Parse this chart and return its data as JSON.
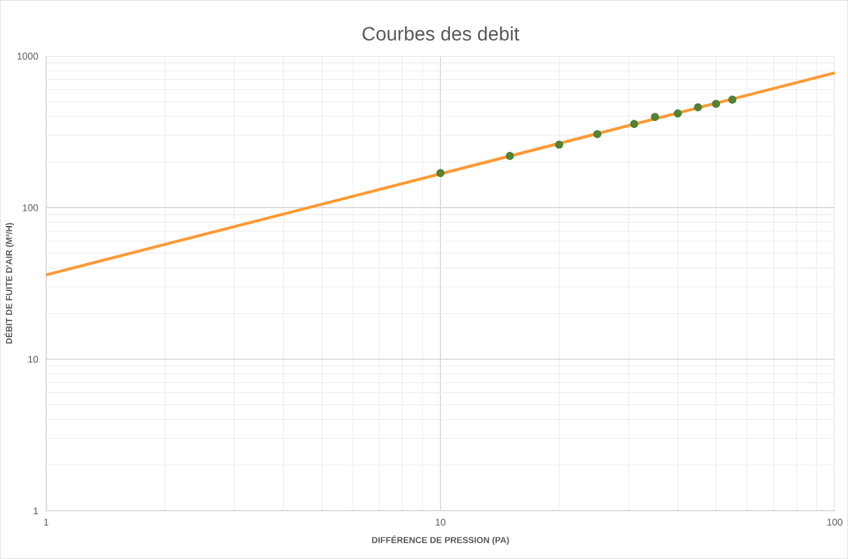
{
  "chart_data": {
    "type": "scatter",
    "title": "Courbes des debit",
    "xlabel": "DIFFÉRENCE DE PRESSION (PA)",
    "ylabel": "DÉBIT DE FUITE D'AIR (M³/H)",
    "log": "xy",
    "grid": true,
    "xlim": [
      1,
      100
    ],
    "xticks": [
      1,
      10,
      100
    ],
    "ylim": [
      1,
      1000
    ],
    "yticks": [
      1,
      10,
      100,
      1000
    ],
    "series": [
      {
        "type": "line",
        "color": "#ff9933",
        "marker": "none",
        "line_style": "solid",
        "x": [
          1,
          100
        ],
        "values": [
          36,
          774
        ]
      },
      {
        "color": "#548235",
        "marker": "circle",
        "x": [
          10,
          15,
          20,
          25,
          31,
          35,
          40,
          45,
          50,
          55
        ],
        "values": [
          169,
          219,
          260,
          305,
          356,
          396,
          418,
          459,
          483,
          515
        ]
      }
    ]
  }
}
